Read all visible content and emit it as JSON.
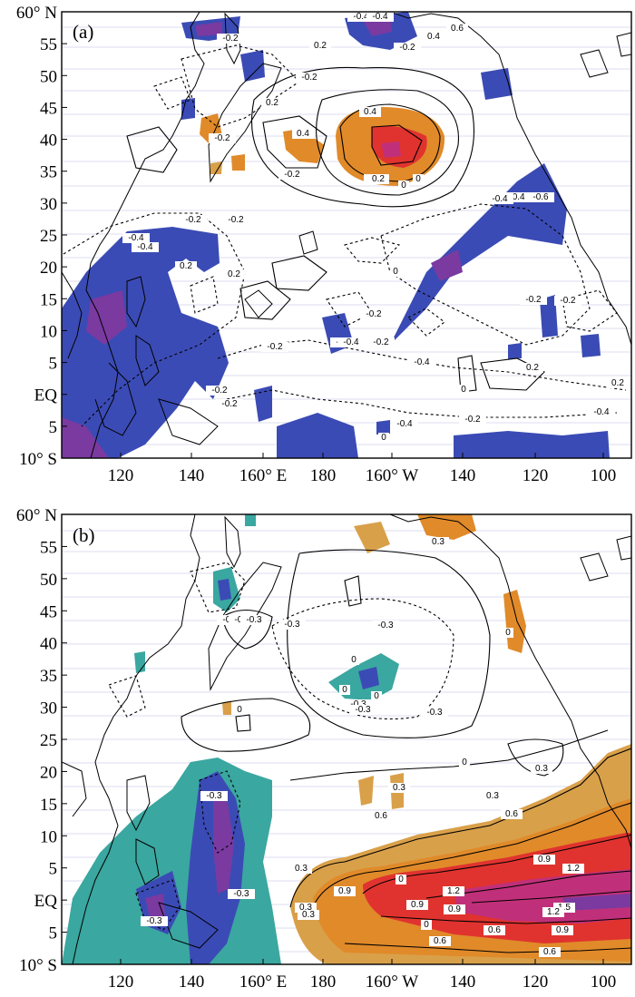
{
  "figure": {
    "latitude_ticks": [
      "60° N",
      "55",
      "50",
      "45",
      "40",
      "35",
      "30",
      "25",
      "20",
      "15",
      "10",
      "5",
      "EQ",
      "5",
      "10° S"
    ],
    "longitude_ticks": [
      "120",
      "140",
      "160° E",
      "180",
      "160° W",
      "140",
      "120",
      "100"
    ],
    "colors": {
      "neg_strong": "#3b4bb5",
      "neg_purple": "#7a3aa0",
      "neg_teal": "#3aa7a0",
      "pos_orange": "#e08a2a",
      "pos_tan": "#d9a04a",
      "pos_red": "#e0332f",
      "pos_magenta": "#c0307a"
    }
  },
  "panels": [
    {
      "label": "(a)",
      "contour_labels": [
        "-0.4",
        "-0.2",
        "-0.2",
        "0.2",
        "0.4",
        "0.6",
        "-0.2",
        "0.2",
        "0.4",
        "0.4",
        "-0.4",
        "0.4",
        "-0.4",
        "-0.2",
        "-0.2",
        "0.2",
        "0",
        "0",
        "-0.6",
        "-0.4",
        "-0.4",
        "-0.2",
        "0.2",
        "-0.2",
        "-0.4",
        "-0.2",
        "-0.2",
        "0.2",
        "-0.4",
        "0.2",
        "-0.2",
        "-0.4",
        "0",
        "-0.4",
        "-0.2",
        "-0.2",
        "-0.2",
        "0.2",
        "0",
        "-0.2",
        "-0.2",
        "-0.4",
        "-0.4",
        "0"
      ]
    },
    {
      "label": "(b)",
      "contour_labels": [
        "0.3",
        "-0.3",
        "-0.3",
        "-0.3",
        "-0.3",
        "-0.3",
        "0",
        "-0.3",
        "0",
        "0",
        "0",
        "-0.3",
        "0",
        "0",
        "-0.3",
        "0.3",
        "0.3",
        "0.3",
        "0.3",
        "0.6",
        "0.6",
        "0.9",
        "0.9",
        "0.9",
        "1.2",
        "1.2",
        "1.5",
        "1.2",
        "0.9",
        "0.6",
        "0.6",
        "0.3",
        "0",
        "0.3",
        "-0.3",
        "-0.3",
        "-0.3",
        "0",
        "0.9",
        "0.6"
      ]
    }
  ]
}
